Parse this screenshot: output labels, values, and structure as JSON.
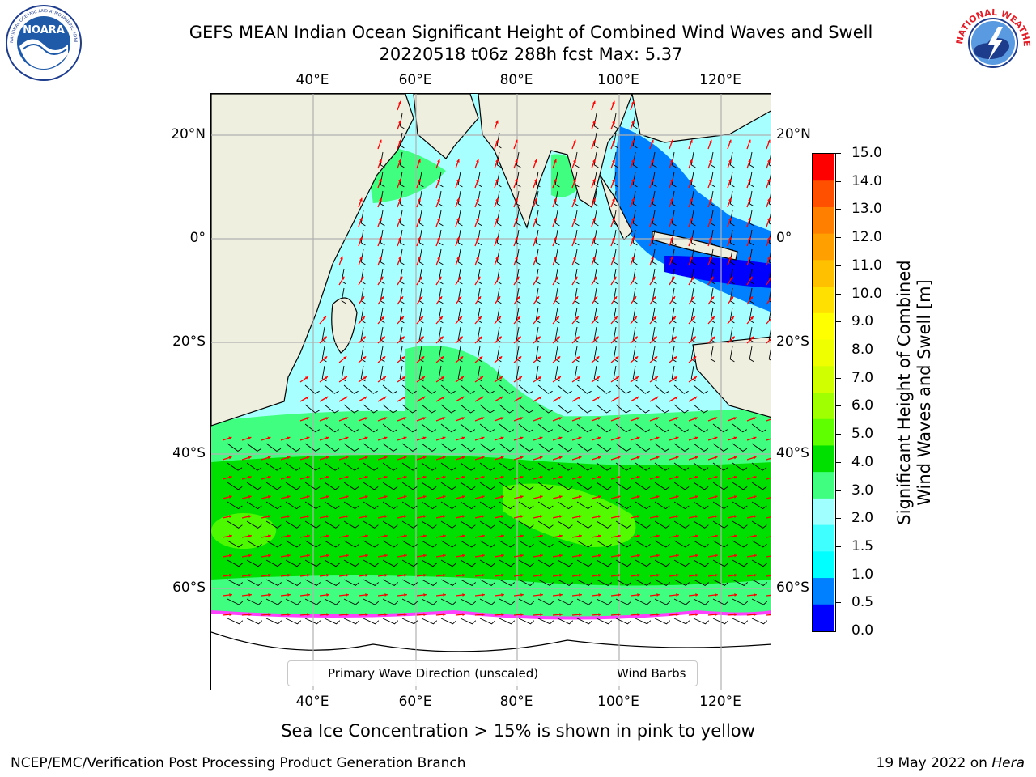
{
  "title": {
    "line1": "GEFS MEAN Indian Ocean Significant Height of Combined Wind Waves and Swell",
    "line2": "20220518 t06z 288h fcst   Max: 5.37"
  },
  "logos": {
    "left": {
      "name": "NOARA",
      "ring_text": "NATIONAL OCEANIC AND ATMOSPHERIC ADMINISTRATION · U.S. DEPARTMENT OF COMMERCE",
      "color": "#1e5aa8"
    },
    "right": {
      "name": "NATIONAL WEATHER SERVICE",
      "color": "#e0202a"
    }
  },
  "map": {
    "projection": "cylindrical",
    "lon_range": [
      20,
      130
    ],
    "lat_range": [
      -73,
      28
    ],
    "grid": true,
    "lon_ticks_top": [
      "40°E",
      "60°E",
      "80°E",
      "100°E",
      "120°E"
    ],
    "lon_ticks_bottom": [
      "40°E",
      "60°E",
      "80°E",
      "100°E",
      "120°E"
    ],
    "lat_ticks_left": [
      "20°N",
      "0°",
      "20°S",
      "40°S",
      "60°S"
    ],
    "lat_ticks_right": [
      "20°N",
      "0°",
      "20°S",
      "40°S",
      "60°S"
    ],
    "land_color": "#efefdf",
    "sea_ice_color": "#ffffff"
  },
  "colorbar": {
    "label": "Significant Height of Combined\nWind Waves and Swell [m]",
    "ticks": [
      "15.0",
      "14.0",
      "13.0",
      "12.0",
      "11.0",
      "10.0",
      "9.0",
      "8.0",
      "7.0",
      "6.0",
      "5.0",
      "4.0",
      "3.0",
      "2.0",
      "1.5",
      "1.0",
      "0.5",
      "0.0"
    ],
    "colors": [
      "#0000ff",
      "#0080ff",
      "#00ffff",
      "#40ffff",
      "#a0ffff",
      "#40ff80",
      "#00e000",
      "#60ff00",
      "#a0ff00",
      "#d0ff00",
      "#f0ff00",
      "#ffff00",
      "#ffe000",
      "#ffc000",
      "#ffa000",
      "#ff8000",
      "#ff5000",
      "#ff0000"
    ]
  },
  "legend": {
    "wave_direction": "Primary Wave Direction (unscaled)",
    "wind_barbs": "Wind Barbs",
    "wave_color": "#ff0000",
    "barb_color": "#000000"
  },
  "subtitle": "Sea Ice Concentration > 15% is shown in pink to yellow",
  "footer": {
    "left": "NCEP/EMC/Verification Post Processing Product Generation Branch",
    "right_date": "19 May 2022 on ",
    "right_host": "Hera"
  }
}
